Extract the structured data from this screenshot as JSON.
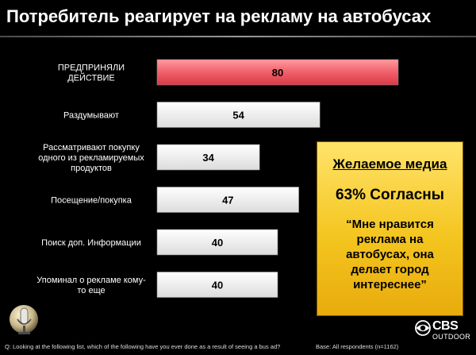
{
  "title": "Потребитель реагирует на рекламу на автобусах",
  "chart_data": {
    "type": "bar",
    "orientation": "horizontal",
    "categories": [
      [
        "ПРЕДПРИНЯЛИ",
        "ДЕЙСТВИЕ"
      ],
      [
        "Раздумывают"
      ],
      [
        "Рассматривают покупку",
        "одного из рекламируемых",
        "продуктов"
      ],
      [
        "Посещение/покупка"
      ],
      [
        "Поиск доп. Информации"
      ],
      [
        "Упоминал о рекламе кому-",
        "то еще"
      ]
    ],
    "values": [
      80,
      54,
      34,
      47,
      40,
      40
    ],
    "highlight_index": 0,
    "xlim": [
      0,
      100
    ],
    "grid": false,
    "colors": {
      "highlight": "#f0606a",
      "bar": "#ffffff",
      "value_text": "#000000"
    }
  },
  "callout": {
    "heading": "Желаемое медиа",
    "stat": "63% Согласны",
    "quote": "“Мне нравится реклама на автобусах, она делает город интереснее”"
  },
  "footnote": "Q: Looking at the following list, which of the following have you ever done as a result of seeing a bus ad?",
  "base": "Base: All respondents (n=1162)",
  "logo": {
    "name": "CBS",
    "sub": "OUTDOOR",
    "icon": "cbs-eye-icon"
  },
  "decor_icon": "microphone-icon"
}
